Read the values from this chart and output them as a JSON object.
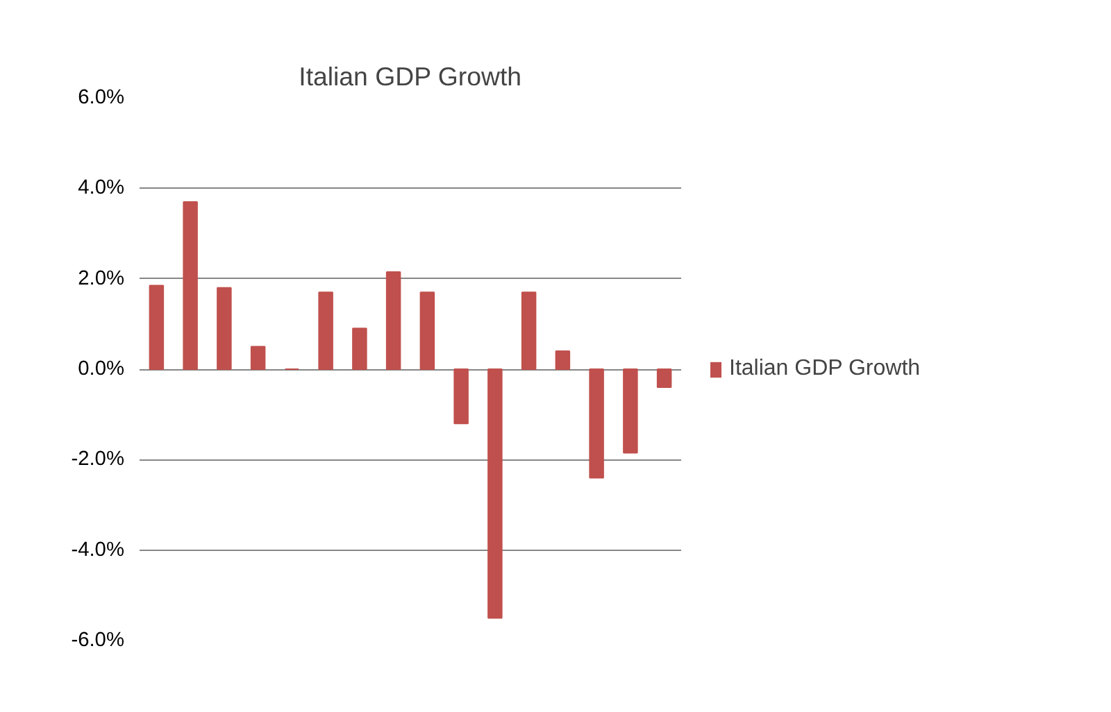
{
  "chart_data": {
    "type": "bar",
    "title": "Italian GDP Growth",
    "categories": [
      null,
      null,
      null,
      null,
      null,
      null,
      null,
      null,
      null,
      null,
      null,
      null,
      null,
      null,
      null,
      null
    ],
    "series": [
      {
        "name": "Italian GDP Growth",
        "color": "#c0504d",
        "values": [
          1.85,
          3.7,
          1.8,
          0.5,
          0,
          1.7,
          0.9,
          2.15,
          1.7,
          -1.2,
          -5.5,
          1.7,
          0.4,
          -2.4,
          -1.85,
          -0.4
        ]
      }
    ],
    "ylim": [
      -6,
      6
    ],
    "yticks": [
      {
        "value": -6,
        "label": "-6.0%"
      },
      {
        "value": -4,
        "label": "-4.0%"
      },
      {
        "value": -2,
        "label": "-2.0%"
      },
      {
        "value": 0,
        "label": "0.0%"
      },
      {
        "value": 2,
        "label": "2.0%"
      },
      {
        "value": 4,
        "label": "4.0%"
      },
      {
        "value": 6,
        "label": "6.0%"
      }
    ],
    "grid": "y",
    "legend": "right",
    "tick_labels": "y"
  }
}
